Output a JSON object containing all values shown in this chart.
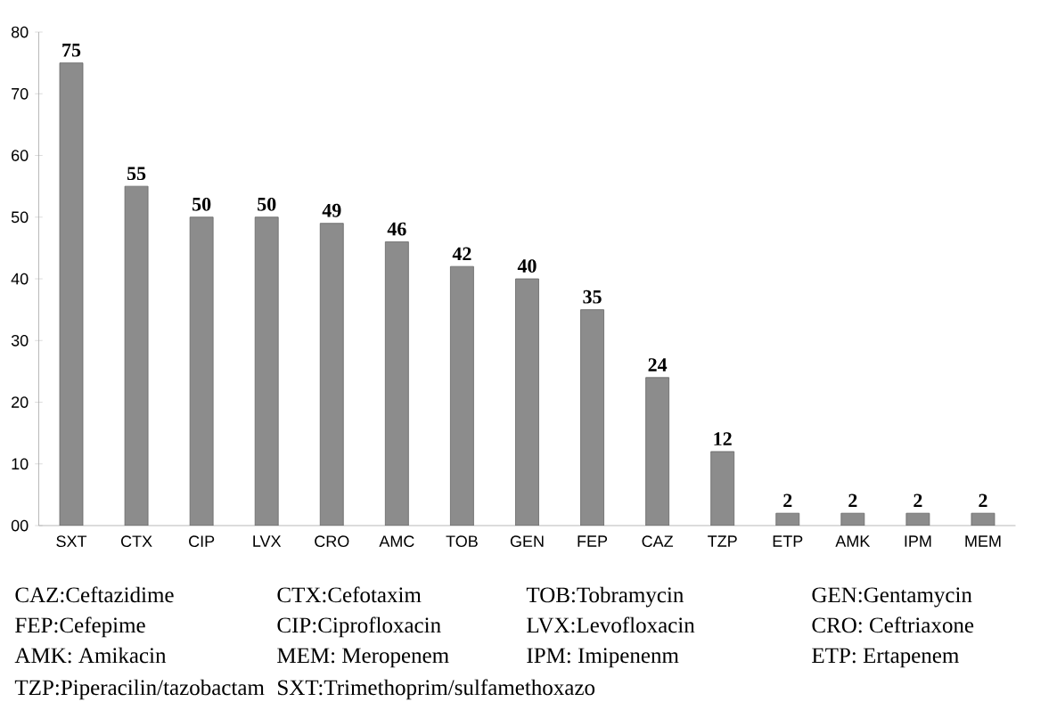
{
  "chart_data": {
    "type": "bar",
    "categories": [
      "SXT",
      "CTX",
      "CIP",
      "LVX",
      "CRO",
      "AMC",
      "TOB",
      "GEN",
      "FEP",
      "CAZ",
      "TZP",
      "ETP",
      "AMK",
      "IPM",
      "MEM"
    ],
    "values": [
      75,
      55,
      50,
      50,
      49,
      46,
      42,
      40,
      35,
      24,
      12,
      2,
      2,
      2,
      2
    ],
    "color": "#8c8c8c",
    "ylim": [
      0,
      80
    ],
    "yticks": [
      {
        "value": 0,
        "label": "00"
      },
      10,
      20,
      30,
      40,
      50,
      60,
      70,
      80
    ],
    "data_labels": true,
    "annotations": [
      "CAZ:Ceftazidime",
      "CTX:Cefotaxim",
      "TOB:Tobramycin",
      "GEN:Gentamycin",
      "FEP:Cefepime",
      "CIP:Ciprofloxacin",
      "LVX:Levofloxacin",
      "CRO: Ceftriaxone",
      "AMK: Amikacin",
      "MEM: Meropenem",
      "IPM: Imipenenm",
      "ETP: Ertapenem",
      "TZP:Piperacilin/tazobactam",
      "SXT:Trimethoprim/sulfamethoxazo"
    ]
  }
}
